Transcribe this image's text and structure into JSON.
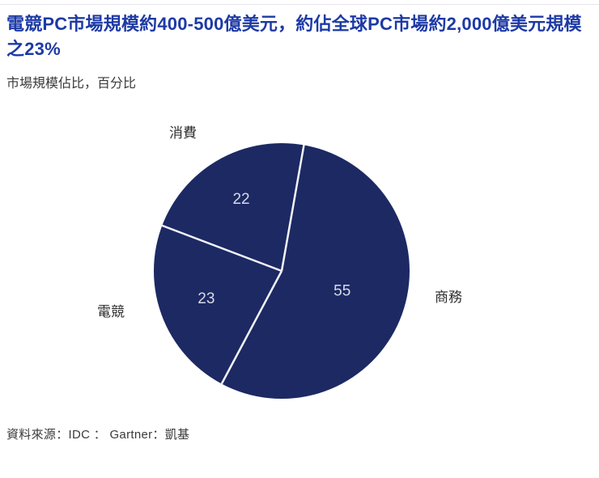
{
  "page": {
    "title": "電競PC市場規模約400-500億美元，約佔全球PC市場約2,000億美元規模之23%",
    "subtitle": "市場規模佔比，百分比",
    "source": "資料來源：IDC ： Gartner：凱基"
  },
  "colors": {
    "title_blue": "#1d3aa5",
    "pie_navy": "#1c2963",
    "separator": "#f3f3f7",
    "value_label": "#d7dae6",
    "text_dark": "#3a3a3a"
  },
  "chart_data": {
    "type": "pie",
    "title": "市場規模佔比，百分比",
    "unit": "percent",
    "direction": "clockwise",
    "start_angle_deg": 10,
    "slices": [
      {
        "label": "商務",
        "value": 55
      },
      {
        "label": "電競",
        "value": 23
      },
      {
        "label": "消費",
        "value": 22
      }
    ],
    "slice_color": "#1c2963",
    "legend_position": "outside-labels",
    "value_labels_inside": true
  }
}
